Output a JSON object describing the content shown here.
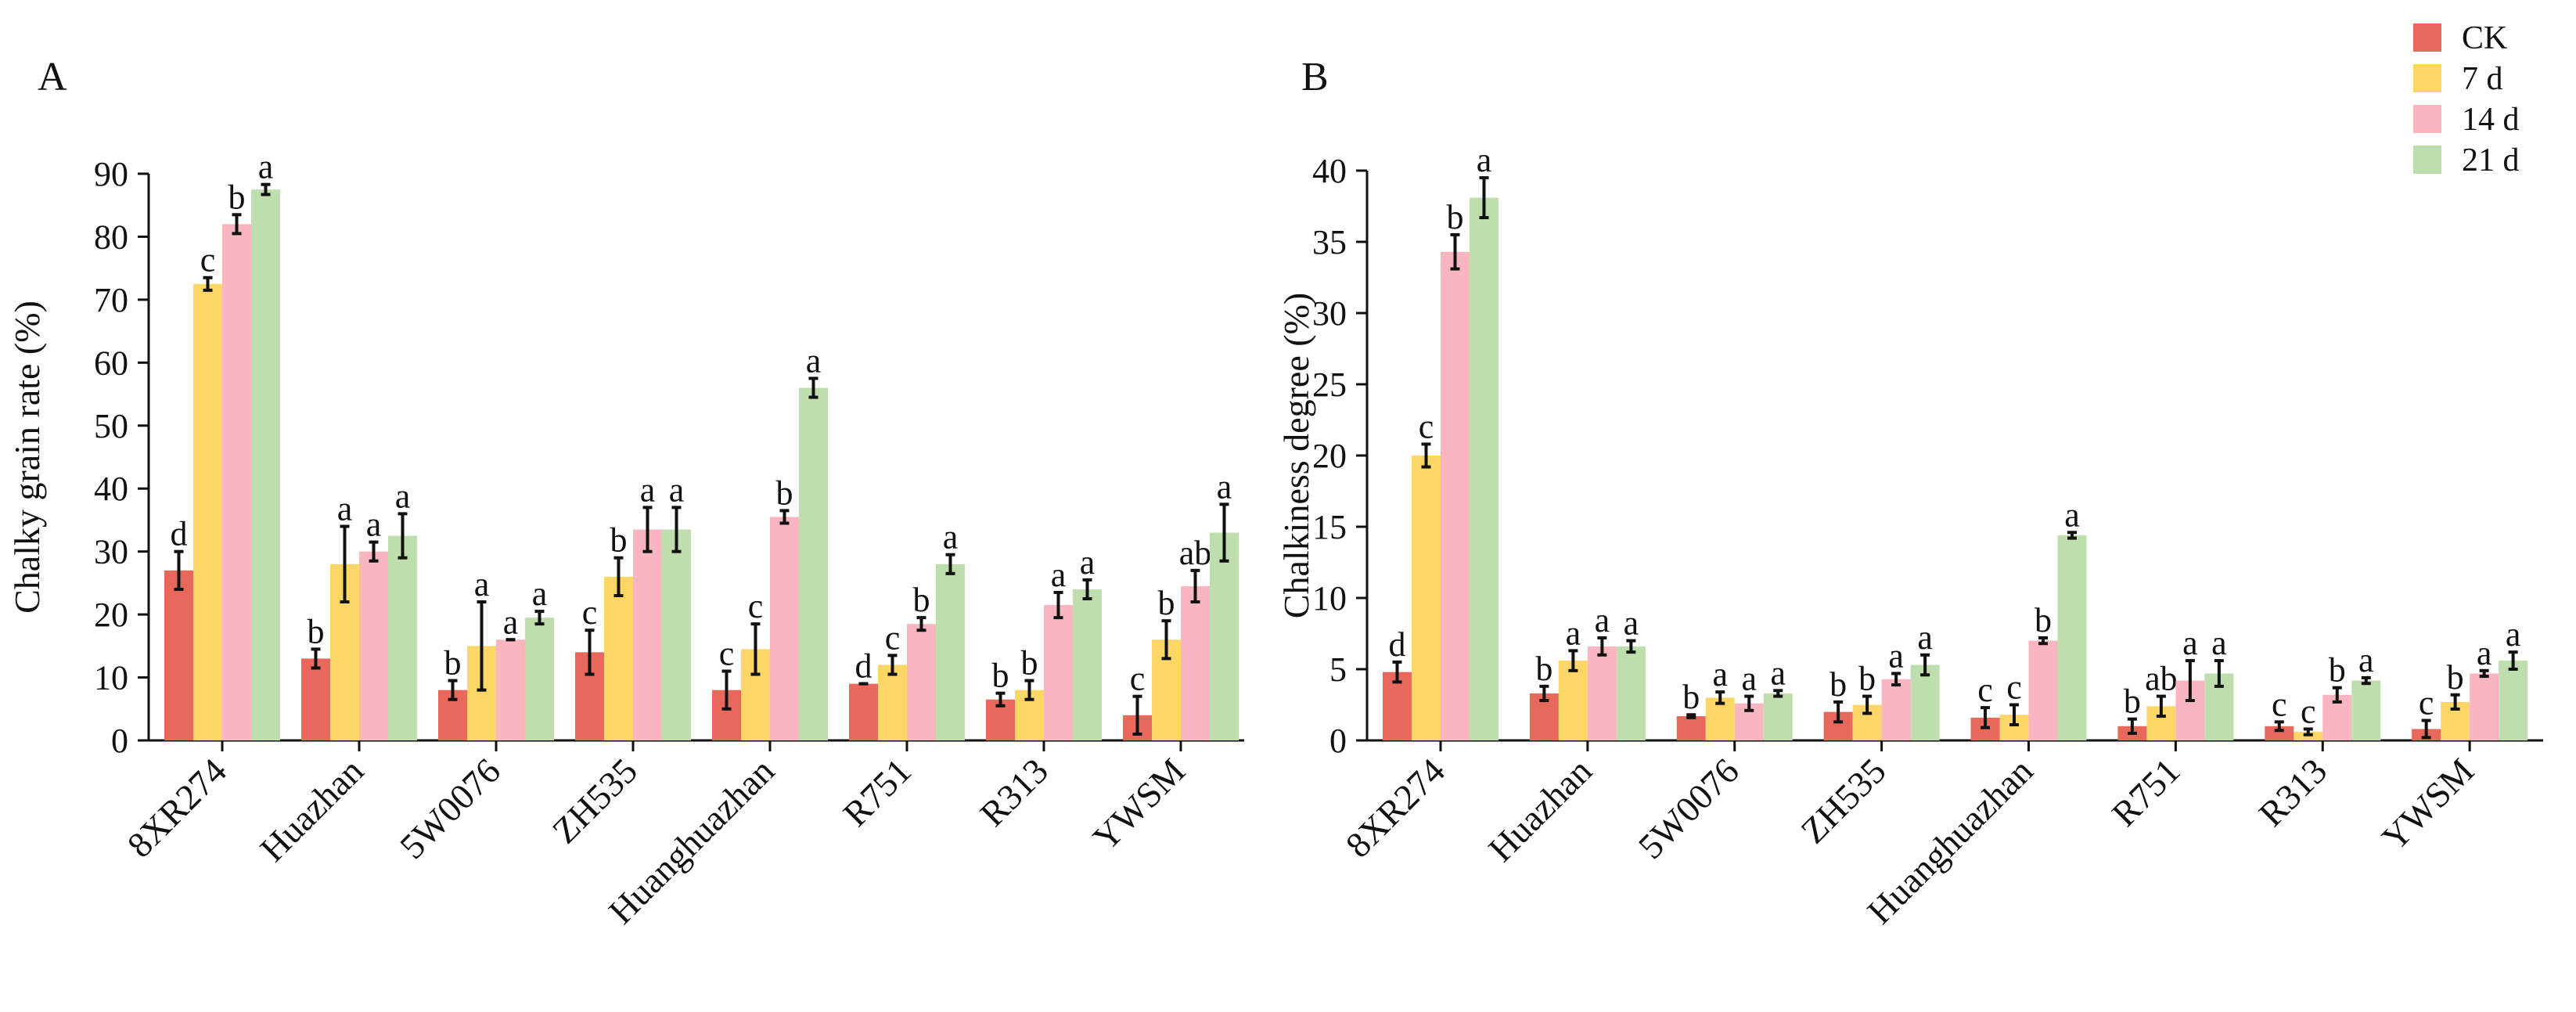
{
  "figure": {
    "series_colors": {
      "CK": "#E8695B",
      "7 d": "#FCD767",
      "14 d": "#F9B6C1",
      "21 d": "#BFDEAE"
    },
    "error_bar_color": "#111111"
  },
  "legend": {
    "placement": "top-right",
    "items": [
      "CK",
      "7 d",
      "14 d",
      "21 d"
    ]
  },
  "chart_data": [
    {
      "type": "bar",
      "panel_label": "A",
      "ylabel": "Chalky grain rate (%)",
      "xlabel": "",
      "ylim": [
        0,
        90
      ],
      "yticks": [
        0,
        10,
        20,
        30,
        40,
        50,
        60,
        70,
        80,
        90
      ],
      "categories": [
        "8XR274",
        "Huazhan",
        "5W0076",
        "ZH535",
        "Huanghuazhan",
        "R751",
        "R313",
        "YWSM"
      ],
      "series": [
        {
          "name": "CK",
          "values": [
            27,
            13,
            8,
            14,
            8,
            9,
            6.5,
            4
          ],
          "errors": [
            3,
            1.5,
            1.5,
            3.5,
            3,
            0,
            1,
            3
          ],
          "labels": [
            "d",
            "b",
            "b",
            "c",
            "c",
            "d",
            "b",
            "c"
          ]
        },
        {
          "name": "7 d",
          "values": [
            72.5,
            28,
            15,
            26,
            14.5,
            12,
            8,
            16
          ],
          "errors": [
            1,
            6,
            7,
            3,
            4,
            1.5,
            1.5,
            3
          ],
          "labels": [
            "c",
            "a",
            "a",
            "b",
            "c",
            "c",
            "b",
            "b"
          ]
        },
        {
          "name": "14 d",
          "values": [
            82,
            30,
            16,
            33.5,
            35.5,
            18.5,
            21.5,
            24.5
          ],
          "errors": [
            1.5,
            1.5,
            0,
            3.5,
            1,
            1,
            2,
            2.5
          ],
          "labels": [
            "b",
            "a",
            "a",
            "a",
            "b",
            "b",
            "a",
            "ab"
          ]
        },
        {
          "name": "21 d",
          "values": [
            87.5,
            32.5,
            19.5,
            33.5,
            56,
            28,
            24,
            33
          ],
          "errors": [
            0.8,
            3.5,
            1,
            3.5,
            1.5,
            1.5,
            1.5,
            4.5
          ],
          "labels": [
            "a",
            "a",
            "a",
            "a",
            "a",
            "a",
            "a",
            "a"
          ]
        }
      ]
    },
    {
      "type": "bar",
      "panel_label": "B",
      "ylabel": "Chalkiness degree (%)",
      "xlabel": "",
      "ylim": [
        0,
        40
      ],
      "yticks": [
        0,
        5,
        10,
        15,
        20,
        25,
        30,
        35,
        40
      ],
      "categories": [
        "8XR274",
        "Huazhan",
        "5W0076",
        "ZH535",
        "Huanghuazhan",
        "R751",
        "R313",
        "YWSM"
      ],
      "series": [
        {
          "name": "CK",
          "values": [
            4.8,
            3.3,
            1.7,
            2,
            1.6,
            1,
            1,
            0.8
          ],
          "errors": [
            0.7,
            0.5,
            0.1,
            0.7,
            0.7,
            0.5,
            0.3,
            0.6
          ],
          "labels": [
            "d",
            "b",
            "b",
            "b",
            "c",
            "b",
            "c",
            "c"
          ]
        },
        {
          "name": "7 d",
          "values": [
            20,
            5.6,
            3,
            2.5,
            1.8,
            2.4,
            0.6,
            2.7
          ],
          "errors": [
            0.8,
            0.7,
            0.4,
            0.6,
            0.7,
            0.7,
            0.2,
            0.5
          ],
          "labels": [
            "c",
            "a",
            "a",
            "b",
            "c",
            "ab",
            "c",
            "b"
          ]
        },
        {
          "name": "14 d",
          "values": [
            34.3,
            6.6,
            2.6,
            4.3,
            7,
            4.2,
            3.2,
            4.7
          ],
          "errors": [
            1.2,
            0.6,
            0.5,
            0.4,
            0.2,
            1.4,
            0.5,
            0.2
          ],
          "labels": [
            "b",
            "a",
            "a",
            "a",
            "b",
            "a",
            "b",
            "a"
          ]
        },
        {
          "name": "21 d",
          "values": [
            38.1,
            6.6,
            3.3,
            5.3,
            14.4,
            4.7,
            4.2,
            5.6
          ],
          "errors": [
            1.4,
            0.4,
            0.2,
            0.7,
            0.2,
            0.9,
            0.2,
            0.6
          ],
          "labels": [
            "a",
            "a",
            "a",
            "a",
            "a",
            "a",
            "a",
            "a"
          ]
        }
      ]
    }
  ]
}
